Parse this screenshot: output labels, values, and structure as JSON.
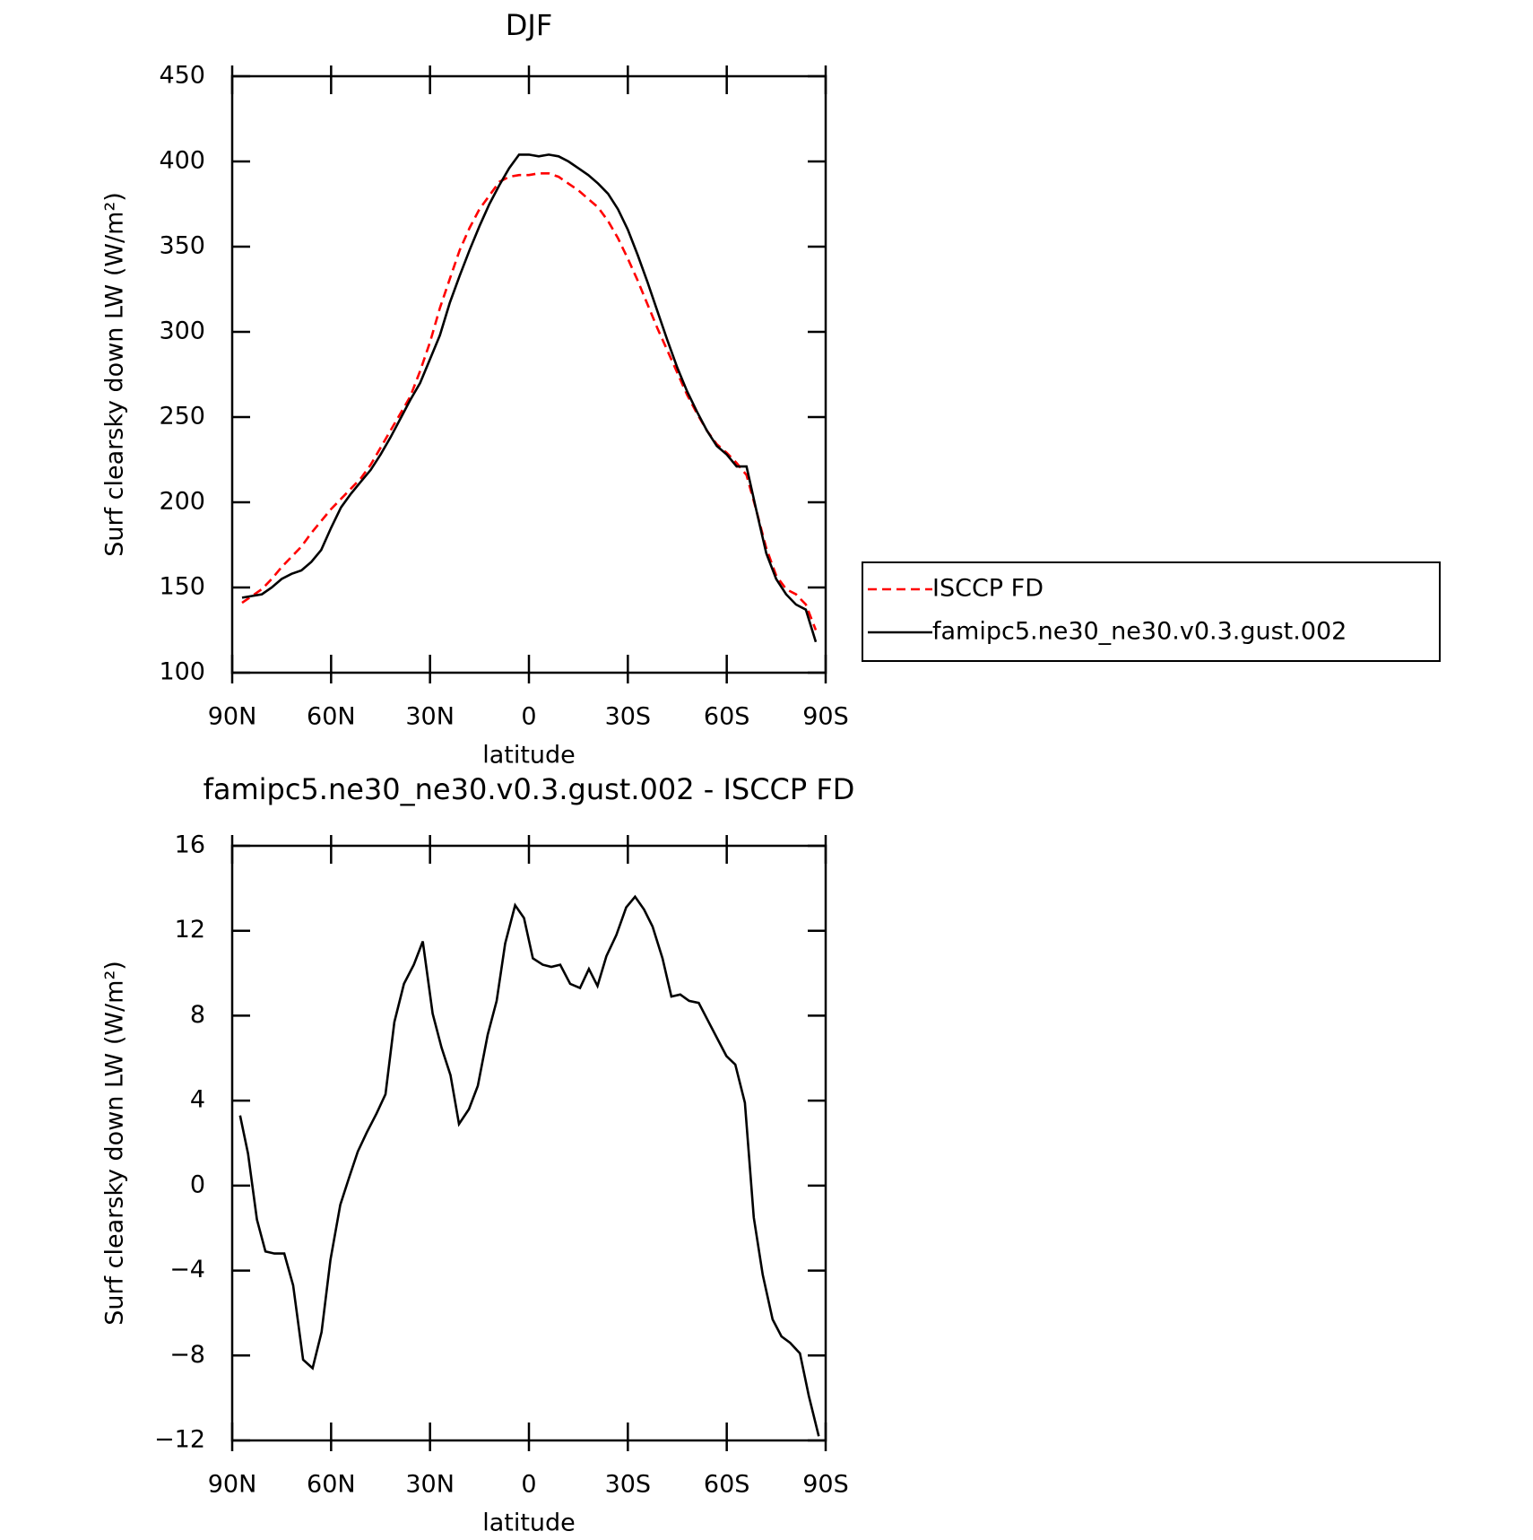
{
  "chart_data": [
    {
      "type": "line",
      "title": "DJF",
      "xlabel": "latitude",
      "ylabel": "Surf clearsky down LW (W/m²)",
      "x": [
        87,
        84,
        81,
        78,
        75,
        72,
        69,
        66,
        63,
        60,
        57,
        54,
        51,
        48,
        45,
        42,
        39,
        36,
        33,
        30,
        27,
        24,
        21,
        18,
        15,
        12,
        9,
        6,
        3,
        0,
        -3,
        -6,
        -9,
        -12,
        -15,
        -18,
        -21,
        -24,
        -27,
        -30,
        -33,
        -36,
        -39,
        -42,
        -45,
        -48,
        -51,
        -54,
        -57,
        -60,
        -63,
        -66,
        -69,
        -72,
        -75,
        -78,
        -81,
        -84,
        -87
      ],
      "series": [
        {
          "name": "ISCCP FD",
          "color": "#ff0000",
          "dashed": true,
          "values": [
            141,
            145,
            149,
            155,
            162,
            168,
            174,
            182,
            189,
            196,
            202,
            208,
            214,
            222,
            232,
            242,
            252,
            262,
            277,
            294,
            314,
            331,
            348,
            361,
            372,
            380,
            388,
            391,
            392,
            392,
            393,
            393,
            391,
            387,
            383,
            378,
            373,
            365,
            355,
            343,
            330,
            316,
            302,
            289,
            276,
            263,
            252,
            242,
            234,
            229,
            223,
            216,
            195,
            173,
            157,
            149,
            146,
            140,
            125
          ]
        },
        {
          "name": "famipc5.ne30_ne30.v0.3.gust.002",
          "color": "#000000",
          "dashed": false,
          "values": [
            144,
            145,
            146,
            150,
            155,
            158,
            160,
            165,
            172,
            185,
            197,
            205,
            212,
            219,
            228,
            238,
            249,
            260,
            270,
            284,
            298,
            317,
            333,
            348,
            362,
            375,
            386,
            396,
            404,
            404,
            403,
            404,
            403,
            400,
            396,
            392,
            387,
            381,
            372,
            360,
            345,
            329,
            312,
            295,
            279,
            265,
            253,
            242,
            233,
            228,
            221,
            221,
            195,
            170,
            155,
            146,
            140,
            137,
            118
          ]
        }
      ],
      "xlim": [
        90,
        -90
      ],
      "xticks": [
        {
          "value": 90,
          "label": "90N"
        },
        {
          "value": 60,
          "label": "60N"
        },
        {
          "value": 30,
          "label": "30N"
        },
        0,
        {
          "value": -30,
          "label": "30S"
        },
        {
          "value": -60,
          "label": "60S"
        },
        {
          "value": -90,
          "label": "90S"
        }
      ],
      "ylim": [
        100,
        450
      ],
      "yticks": [
        100,
        150,
        200,
        250,
        300,
        350,
        400,
        450
      ],
      "legend": "right"
    },
    {
      "type": "line",
      "title": "famipc5.ne30_ne30.v0.3.gust.002 - ISCCP FD",
      "xlabel": "latitude",
      "ylabel": "Surf clearsky down LW (W/m²)",
      "x": [
        87.6,
        85.2,
        82.5,
        79.9,
        77.2,
        74.2,
        71.5,
        68.5,
        65.6,
        62.9,
        60.2,
        57.2,
        54.5,
        51.9,
        49.2,
        46.2,
        43.5,
        40.8,
        37.9,
        34.9,
        32.2,
        29.2,
        26.5,
        23.8,
        21.2,
        18.2,
        15.5,
        12.5,
        9.8,
        7.2,
        4.2,
        1.5,
        -1.2,
        -4.2,
        -6.8,
        -9.5,
        -12.5,
        -15.5,
        -18.2,
        -20.8,
        -23.5,
        -26.5,
        -29.5,
        -32.2,
        -34.9,
        -37.5,
        -40.5,
        -43.2,
        -45.9,
        -48.6,
        -51.5,
        -54.2,
        -57.2,
        -59.9,
        -62.6,
        -65.5,
        -68.2,
        -70.9,
        -73.9,
        -76.6,
        -79.2,
        -82.2,
        -84.9,
        -87.9
      ],
      "values": [
        3.3,
        1.5,
        -1.6,
        -3.1,
        -3.2,
        -3.2,
        -4.7,
        -8.2,
        -8.6,
        -6.9,
        -3.5,
        -0.9,
        0.4,
        1.6,
        2.5,
        3.4,
        4.3,
        7.7,
        9.5,
        10.4,
        11.5,
        8.1,
        6.5,
        5.2,
        2.9,
        3.6,
        4.7,
        7.1,
        8.7,
        11.4,
        13.2,
        12.6,
        10.7,
        10.4,
        10.3,
        10.4,
        9.5,
        9.3,
        10.2,
        9.4,
        10.8,
        11.8,
        13.1,
        13.6,
        13.0,
        12.2,
        10.7,
        8.9,
        9.0,
        8.7,
        8.6,
        7.8,
        6.9,
        6.1,
        5.7,
        3.9,
        -1.5,
        -4.2,
        -6.3,
        -7.1,
        -7.4,
        -7.9,
        -9.9,
        -11.8
      ],
      "color": "#000000",
      "xlim": [
        90,
        -90
      ],
      "xticks": [
        {
          "value": 90,
          "label": "90N"
        },
        {
          "value": 60,
          "label": "60N"
        },
        {
          "value": 30,
          "label": "30N"
        },
        0,
        {
          "value": -30,
          "label": "30S"
        },
        {
          "value": -60,
          "label": "60S"
        },
        {
          "value": -90,
          "label": "90S"
        }
      ],
      "ylim": [
        -12,
        16
      ],
      "yticks": [
        {
          "value": -12,
          "label": "−12"
        },
        {
          "value": -8,
          "label": "−8"
        },
        {
          "value": -4,
          "label": "−4"
        },
        0,
        4,
        8,
        12,
        16
      ]
    }
  ]
}
